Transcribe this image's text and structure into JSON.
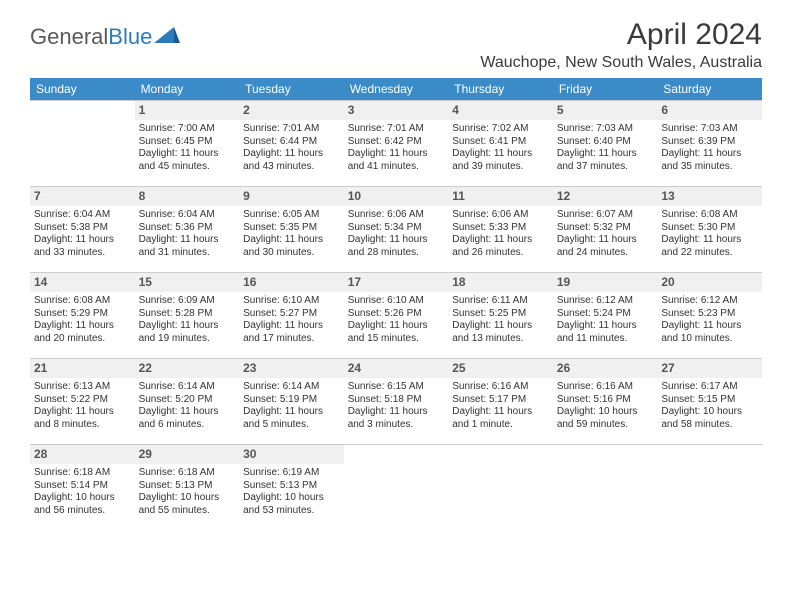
{
  "brand": {
    "name1": "General",
    "name2": "Blue"
  },
  "title": "April 2024",
  "location": "Wauchope, New South Wales, Australia",
  "colors": {
    "header_bg": "#3b8bc8",
    "header_text": "#ffffff",
    "daynum_bg": "#f0f0f0",
    "border": "#cccccc",
    "brand_blue": "#2b7bbf",
    "text": "#333333"
  },
  "weekdays": [
    "Sunday",
    "Monday",
    "Tuesday",
    "Wednesday",
    "Thursday",
    "Friday",
    "Saturday"
  ],
  "weeks": [
    [
      {
        "num": "",
        "lines": []
      },
      {
        "num": "1",
        "lines": [
          "Sunrise: 7:00 AM",
          "Sunset: 6:45 PM",
          "Daylight: 11 hours and 45 minutes."
        ]
      },
      {
        "num": "2",
        "lines": [
          "Sunrise: 7:01 AM",
          "Sunset: 6:44 PM",
          "Daylight: 11 hours and 43 minutes."
        ]
      },
      {
        "num": "3",
        "lines": [
          "Sunrise: 7:01 AM",
          "Sunset: 6:42 PM",
          "Daylight: 11 hours and 41 minutes."
        ]
      },
      {
        "num": "4",
        "lines": [
          "Sunrise: 7:02 AM",
          "Sunset: 6:41 PM",
          "Daylight: 11 hours and 39 minutes."
        ]
      },
      {
        "num": "5",
        "lines": [
          "Sunrise: 7:03 AM",
          "Sunset: 6:40 PM",
          "Daylight: 11 hours and 37 minutes."
        ]
      },
      {
        "num": "6",
        "lines": [
          "Sunrise: 7:03 AM",
          "Sunset: 6:39 PM",
          "Daylight: 11 hours and 35 minutes."
        ]
      }
    ],
    [
      {
        "num": "7",
        "lines": [
          "Sunrise: 6:04 AM",
          "Sunset: 5:38 PM",
          "Daylight: 11 hours and 33 minutes."
        ]
      },
      {
        "num": "8",
        "lines": [
          "Sunrise: 6:04 AM",
          "Sunset: 5:36 PM",
          "Daylight: 11 hours and 31 minutes."
        ]
      },
      {
        "num": "9",
        "lines": [
          "Sunrise: 6:05 AM",
          "Sunset: 5:35 PM",
          "Daylight: 11 hours and 30 minutes."
        ]
      },
      {
        "num": "10",
        "lines": [
          "Sunrise: 6:06 AM",
          "Sunset: 5:34 PM",
          "Daylight: 11 hours and 28 minutes."
        ]
      },
      {
        "num": "11",
        "lines": [
          "Sunrise: 6:06 AM",
          "Sunset: 5:33 PM",
          "Daylight: 11 hours and 26 minutes."
        ]
      },
      {
        "num": "12",
        "lines": [
          "Sunrise: 6:07 AM",
          "Sunset: 5:32 PM",
          "Daylight: 11 hours and 24 minutes."
        ]
      },
      {
        "num": "13",
        "lines": [
          "Sunrise: 6:08 AM",
          "Sunset: 5:30 PM",
          "Daylight: 11 hours and 22 minutes."
        ]
      }
    ],
    [
      {
        "num": "14",
        "lines": [
          "Sunrise: 6:08 AM",
          "Sunset: 5:29 PM",
          "Daylight: 11 hours and 20 minutes."
        ]
      },
      {
        "num": "15",
        "lines": [
          "Sunrise: 6:09 AM",
          "Sunset: 5:28 PM",
          "Daylight: 11 hours and 19 minutes."
        ]
      },
      {
        "num": "16",
        "lines": [
          "Sunrise: 6:10 AM",
          "Sunset: 5:27 PM",
          "Daylight: 11 hours and 17 minutes."
        ]
      },
      {
        "num": "17",
        "lines": [
          "Sunrise: 6:10 AM",
          "Sunset: 5:26 PM",
          "Daylight: 11 hours and 15 minutes."
        ]
      },
      {
        "num": "18",
        "lines": [
          "Sunrise: 6:11 AM",
          "Sunset: 5:25 PM",
          "Daylight: 11 hours and 13 minutes."
        ]
      },
      {
        "num": "19",
        "lines": [
          "Sunrise: 6:12 AM",
          "Sunset: 5:24 PM",
          "Daylight: 11 hours and 11 minutes."
        ]
      },
      {
        "num": "20",
        "lines": [
          "Sunrise: 6:12 AM",
          "Sunset: 5:23 PM",
          "Daylight: 11 hours and 10 minutes."
        ]
      }
    ],
    [
      {
        "num": "21",
        "lines": [
          "Sunrise: 6:13 AM",
          "Sunset: 5:22 PM",
          "Daylight: 11 hours and 8 minutes."
        ]
      },
      {
        "num": "22",
        "lines": [
          "Sunrise: 6:14 AM",
          "Sunset: 5:20 PM",
          "Daylight: 11 hours and 6 minutes."
        ]
      },
      {
        "num": "23",
        "lines": [
          "Sunrise: 6:14 AM",
          "Sunset: 5:19 PM",
          "Daylight: 11 hours and 5 minutes."
        ]
      },
      {
        "num": "24",
        "lines": [
          "Sunrise: 6:15 AM",
          "Sunset: 5:18 PM",
          "Daylight: 11 hours and 3 minutes."
        ]
      },
      {
        "num": "25",
        "lines": [
          "Sunrise: 6:16 AM",
          "Sunset: 5:17 PM",
          "Daylight: 11 hours and 1 minute."
        ]
      },
      {
        "num": "26",
        "lines": [
          "Sunrise: 6:16 AM",
          "Sunset: 5:16 PM",
          "Daylight: 10 hours and 59 minutes."
        ]
      },
      {
        "num": "27",
        "lines": [
          "Sunrise: 6:17 AM",
          "Sunset: 5:15 PM",
          "Daylight: 10 hours and 58 minutes."
        ]
      }
    ],
    [
      {
        "num": "28",
        "lines": [
          "Sunrise: 6:18 AM",
          "Sunset: 5:14 PM",
          "Daylight: 10 hours and 56 minutes."
        ]
      },
      {
        "num": "29",
        "lines": [
          "Sunrise: 6:18 AM",
          "Sunset: 5:13 PM",
          "Daylight: 10 hours and 55 minutes."
        ]
      },
      {
        "num": "30",
        "lines": [
          "Sunrise: 6:19 AM",
          "Sunset: 5:13 PM",
          "Daylight: 10 hours and 53 minutes."
        ]
      },
      {
        "num": "",
        "lines": []
      },
      {
        "num": "",
        "lines": []
      },
      {
        "num": "",
        "lines": []
      },
      {
        "num": "",
        "lines": []
      }
    ]
  ]
}
